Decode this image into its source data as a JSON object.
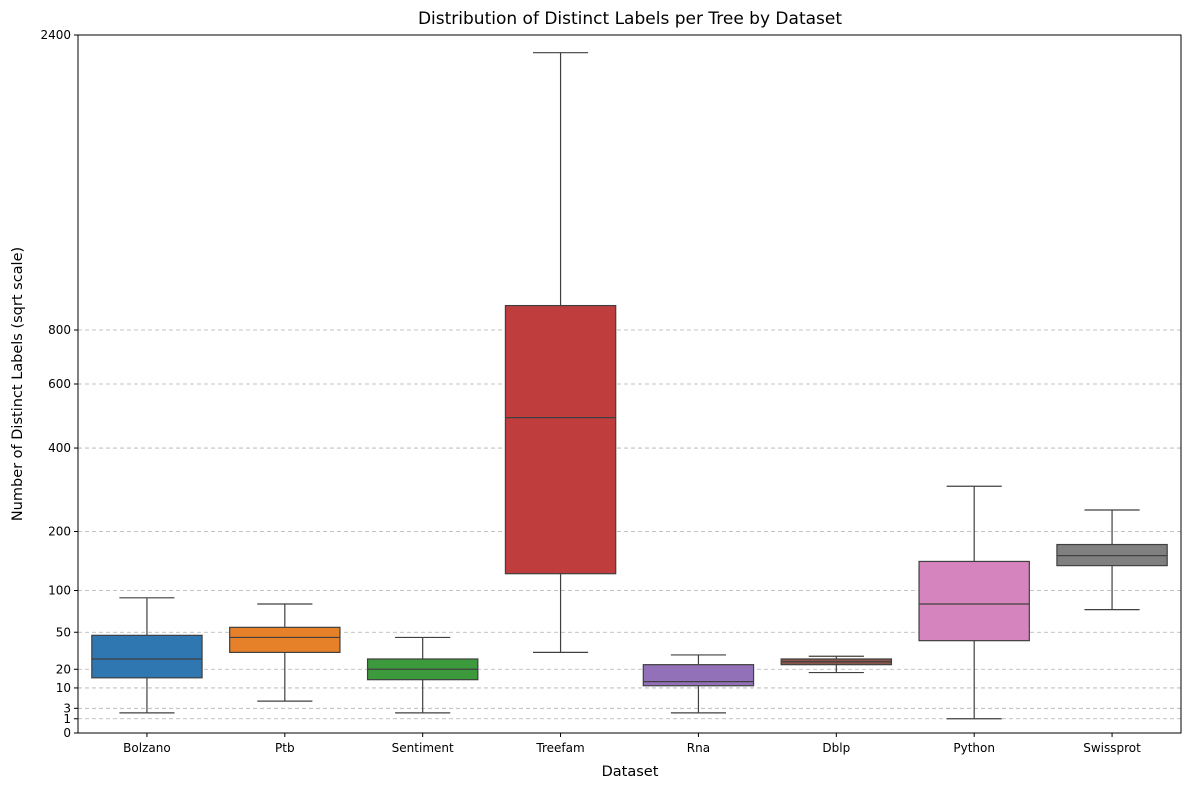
{
  "chart_data": {
    "type": "box",
    "title": "Distribution of Distinct Labels per Tree by Dataset",
    "xlabel": "Dataset",
    "ylabel": "Number of Distinct Labels (sqrt scale)",
    "yscale": "sqrt",
    "ylim": [
      0,
      2400
    ],
    "yticks": [
      0,
      1,
      3,
      10,
      20,
      50,
      100,
      200,
      400,
      600,
      800,
      2400
    ],
    "grid": "y-dashed",
    "categories": [
      "Bolzano",
      "Ptb",
      "Sentiment",
      "Treefam",
      "Rna",
      "Dblp",
      "Python",
      "Swissprot"
    ],
    "boxes": [
      {
        "label": "Bolzano",
        "whisker_low": 2,
        "q1": 15,
        "median": 27,
        "q3": 47,
        "whisker_high": 90,
        "color": "#2e77b1"
      },
      {
        "label": "Ptb",
        "whisker_low": 5,
        "q1": 32,
        "median": 45,
        "q3": 55,
        "whisker_high": 82,
        "color": "#e6812a"
      },
      {
        "label": "Sentiment",
        "whisker_low": 2,
        "q1": 14,
        "median": 20,
        "q3": 27,
        "whisker_high": 45,
        "color": "#3c9a3c"
      },
      {
        "label": "Treefam",
        "whisker_low": 32,
        "q1": 125,
        "median": 490,
        "q3": 900,
        "whisker_high": 2280,
        "color": "#c03d3e"
      },
      {
        "label": "Rna",
        "whisker_low": 2,
        "q1": 11,
        "median": 13,
        "q3": 23,
        "whisker_high": 30,
        "color": "#9271b8"
      },
      {
        "label": "Dblp",
        "whisker_low": 18,
        "q1": 23,
        "median": 25,
        "q3": 27,
        "whisker_high": 29,
        "color": "#8c564b"
      },
      {
        "label": "Python",
        "whisker_low": 1,
        "q1": 42,
        "median": 82,
        "q3": 145,
        "whisker_high": 300,
        "color": "#d584bd"
      },
      {
        "label": "Swissprot",
        "whisker_low": 75,
        "q1": 138,
        "median": 155,
        "q3": 175,
        "whisker_high": 245,
        "color": "#808080"
      }
    ]
  }
}
